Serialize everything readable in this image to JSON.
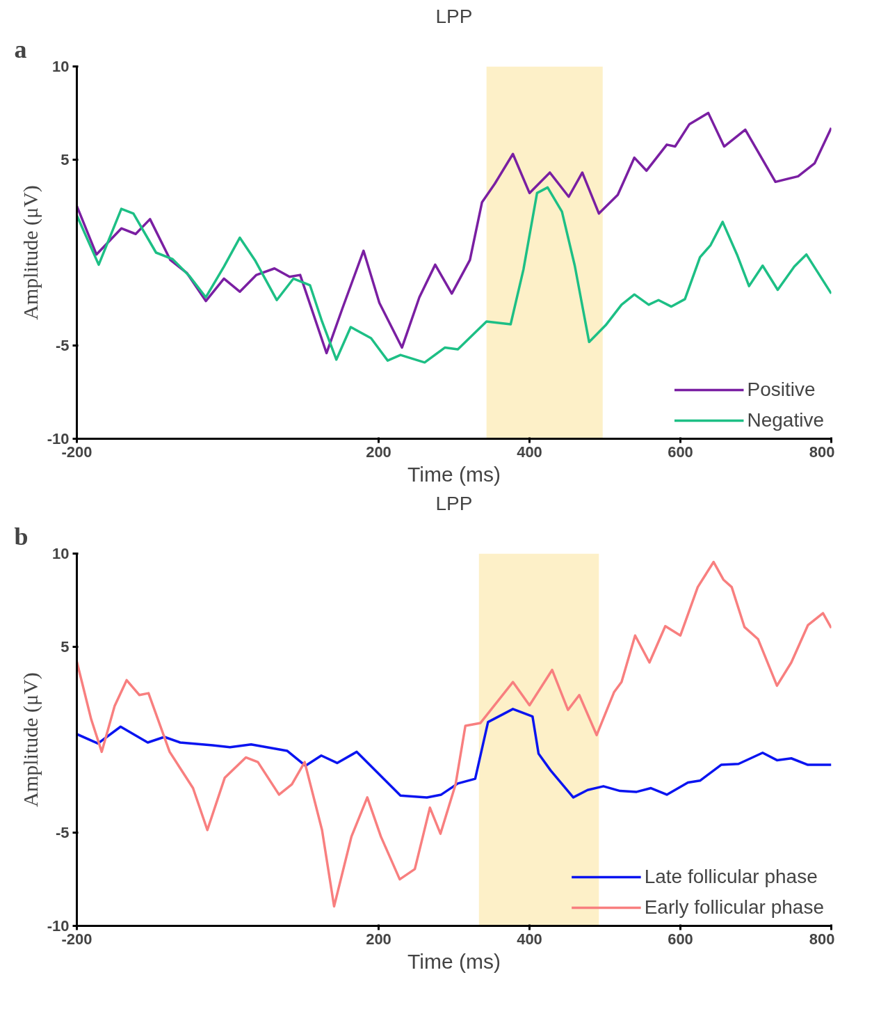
{
  "chart_data": [
    {
      "type": "line",
      "title": "LPP",
      "xlabel": "Time (ms)",
      "ylabel": "Amplitude (μV)",
      "annotations": [
        "a"
      ],
      "xlim": [
        -200,
        800
      ],
      "ylim": [
        -10,
        10
      ],
      "xticks": [
        -200,
        200,
        400,
        600,
        800
      ],
      "yticks": [
        -10,
        -5,
        5,
        10
      ],
      "grid": false,
      "legend": "bottom right",
      "bands": [
        {
          "axis": "x",
          "from": 343,
          "to": 497,
          "color": "#fdf0c8"
        }
      ],
      "series": [
        {
          "name": "Positive",
          "color": "#7a1fa2",
          "x": [
            -200,
            -174,
            -141,
            -122,
            -103,
            -76,
            -54,
            -29,
            -5,
            16,
            38,
            62,
            82,
            96,
            131,
            152,
            180,
            201,
            231,
            254,
            275,
            297,
            321,
            337,
            354,
            378,
            400,
            427,
            452,
            470,
            492,
            517,
            539,
            555,
            582,
            593,
            612,
            637,
            658,
            686,
            726,
            756,
            778,
            800
          ],
          "values": [
            2.5,
            -0.1,
            1.3,
            1.0,
            1.8,
            -0.4,
            -1.1,
            -2.6,
            -1.4,
            -2.1,
            -1.2,
            -0.85,
            -1.3,
            -1.2,
            -5.4,
            -3.0,
            0.1,
            -2.7,
            -5.1,
            -2.4,
            -0.65,
            -2.2,
            -0.4,
            2.7,
            3.7,
            5.3,
            3.2,
            4.3,
            3.0,
            4.3,
            2.1,
            3.1,
            5.1,
            4.4,
            5.8,
            5.7,
            6.9,
            7.5,
            5.7,
            6.6,
            3.8,
            4.1,
            4.8,
            6.7
          ]
        },
        {
          "name": "Negative",
          "color": "#1dbf85",
          "x": [
            -200,
            -171,
            -141,
            -125,
            -95,
            -73,
            -51,
            -29,
            -5,
            16,
            36,
            65,
            87,
            109,
            125,
            144,
            163,
            190,
            212,
            229,
            261,
            288,
            305,
            343,
            375,
            392,
            410,
            424,
            443,
            460,
            479,
            501,
            522,
            539,
            558,
            571,
            588,
            606,
            626,
            640,
            656,
            675,
            691,
            709,
            729,
            751,
            767,
            800
          ],
          "values": [
            2.0,
            -0.65,
            2.35,
            2.1,
            0,
            -0.35,
            -1.25,
            -2.4,
            -0.75,
            0.8,
            -0.4,
            -2.55,
            -1.4,
            -1.75,
            -3.7,
            -5.75,
            -4.0,
            -4.6,
            -5.8,
            -5.5,
            -5.9,
            -5.1,
            -5.2,
            -3.7,
            -3.85,
            -0.9,
            3.2,
            3.5,
            2.2,
            -0.7,
            -4.8,
            -3.9,
            -2.8,
            -2.25,
            -2.8,
            -2.55,
            -2.9,
            -2.5,
            -0.25,
            0.4,
            1.65,
            -0.1,
            -1.8,
            -0.7,
            -2.0,
            -0.75,
            -0.1,
            -2.2
          ]
        }
      ]
    },
    {
      "type": "line",
      "title": "LPP",
      "xlabel": "Time (ms)",
      "ylabel": "Amplitude (μV)",
      "annotations": [
        "b"
      ],
      "xlim": [
        -200,
        800
      ],
      "ylim": [
        -10,
        10
      ],
      "xticks": [
        -200,
        200,
        400,
        600,
        800
      ],
      "yticks": [
        -10,
        -5,
        5,
        10
      ],
      "grid": false,
      "legend": "bottom right",
      "bands": [
        {
          "axis": "x",
          "from": 333,
          "to": 492,
          "color": "#fdf0c8"
        }
      ],
      "series": [
        {
          "name": "Late follicular phase",
          "color": "#0a14f0",
          "x": [
            -200,
            -172,
            -142,
            -106,
            -84,
            -63,
            -20,
            3,
            31,
            79,
            103,
            124,
            145,
            171,
            229,
            264,
            283,
            305,
            328,
            345,
            378,
            404,
            412,
            428,
            458,
            477,
            498,
            520,
            542,
            561,
            582,
            610,
            626,
            654,
            677,
            709,
            728,
            747,
            769,
            800
          ],
          "values": [
            0.3,
            -0.2,
            0.7,
            -0.15,
            0.15,
            -0.15,
            -0.3,
            -0.4,
            -0.25,
            -0.6,
            -1.4,
            -0.85,
            -1.25,
            -0.65,
            -3.0,
            -3.1,
            -2.95,
            -2.35,
            -2.1,
            0.95,
            1.65,
            1.25,
            -0.75,
            -1.65,
            -3.1,
            -2.7,
            -2.5,
            -2.75,
            -2.8,
            -2.6,
            -2.95,
            -2.3,
            -2.2,
            -1.35,
            -1.3,
            -0.7,
            -1.1,
            -1.0,
            -1.35,
            -1.35
          ]
        },
        {
          "name": "Early follicular phase",
          "color": "#f87f7f",
          "x": [
            -200,
            -181,
            -167,
            -150,
            -134,
            -117,
            -105,
            -77,
            -46,
            -27,
            -4,
            24,
            40,
            68,
            85,
            102,
            125,
            141,
            164,
            185,
            203,
            228,
            248,
            268,
            282,
            302,
            315,
            335,
            378,
            400,
            430,
            451,
            466,
            489,
            512,
            522,
            540,
            559,
            580,
            600,
            623,
            644,
            657,
            668,
            685,
            703,
            728,
            747,
            769,
            789,
            800
          ],
          "values": [
            4.2,
            1.1,
            -0.65,
            1.8,
            3.2,
            2.4,
            2.5,
            -0.65,
            -2.6,
            -4.85,
            -2.05,
            -0.95,
            -1.2,
            -2.95,
            -2.4,
            -1.2,
            -4.85,
            -8.95,
            -5.2,
            -3.1,
            -5.2,
            -7.5,
            -6.95,
            -3.65,
            -5.05,
            -2.4,
            0.75,
            0.9,
            3.1,
            1.85,
            3.75,
            1.6,
            2.4,
            0.25,
            2.55,
            3.1,
            5.6,
            4.15,
            6.1,
            5.6,
            8.2,
            9.55,
            8.6,
            8.2,
            6.05,
            5.4,
            2.9,
            4.15,
            6.15,
            6.8,
            6.0
          ]
        }
      ]
    }
  ]
}
